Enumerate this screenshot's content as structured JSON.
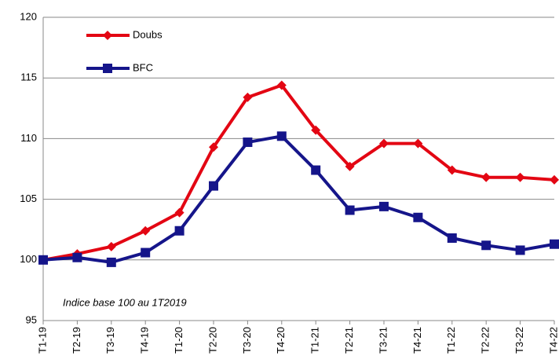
{
  "chart_data": {
    "type": "line",
    "categories": [
      "T1-19",
      "T2-19",
      "T3-19",
      "T4-19",
      "T1-20",
      "T2-20",
      "T3-20",
      "T4-20",
      "T1-21",
      "T2-21",
      "T3-21",
      "T4-21",
      "T1-22",
      "T2-22",
      "T3-22",
      "T4-22"
    ],
    "series": [
      {
        "name": "Doubs",
        "color": "#e30613",
        "marker": "diamond",
        "values": [
          100.0,
          100.5,
          101.1,
          102.4,
          103.9,
          109.3,
          113.4,
          114.4,
          110.7,
          107.7,
          109.6,
          109.6,
          107.4,
          106.8,
          106.8,
          106.6
        ]
      },
      {
        "name": "BFC",
        "color": "#15158a",
        "marker": "square",
        "values": [
          100.0,
          100.2,
          99.8,
          100.6,
          102.4,
          106.1,
          109.7,
          110.2,
          107.4,
          104.1,
          104.4,
          103.5,
          101.8,
          101.2,
          100.8,
          101.3
        ]
      }
    ],
    "ylim": [
      95,
      120
    ],
    "yticks": [
      95,
      100,
      105,
      110,
      115,
      120
    ],
    "grid": true,
    "annotation": "Indice base 100 au 1T2019"
  }
}
